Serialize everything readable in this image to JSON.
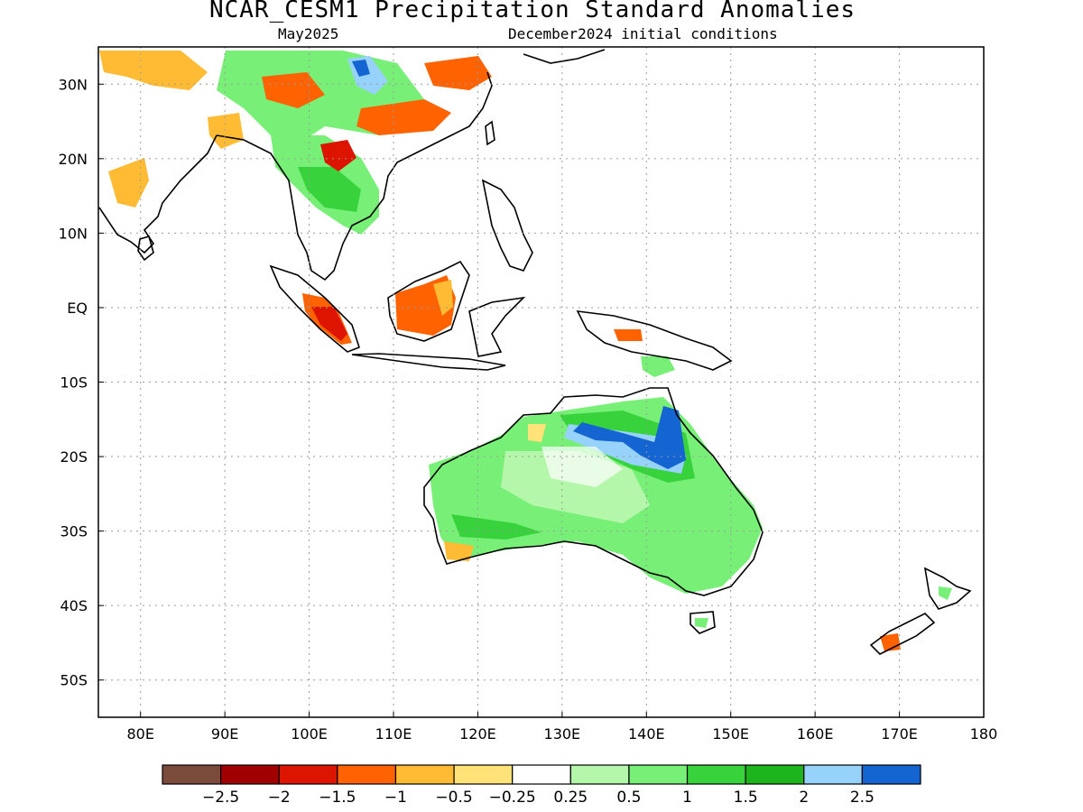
{
  "title": "NCAR_CESM1 Precipitation Standard Anomalies",
  "subtitle_left": "May2025",
  "subtitle_right": "December2024 initial conditions",
  "map": {
    "lon_range": [
      75,
      180
    ],
    "lat_range": [
      -55,
      35
    ],
    "lon_ticks": [
      {
        "v": 80,
        "label": "80E"
      },
      {
        "v": 90,
        "label": "90E"
      },
      {
        "v": 100,
        "label": "100E"
      },
      {
        "v": 110,
        "label": "110E"
      },
      {
        "v": 120,
        "label": "120E"
      },
      {
        "v": 130,
        "label": "130E"
      },
      {
        "v": 140,
        "label": "140E"
      },
      {
        "v": 150,
        "label": "150E"
      },
      {
        "v": 160,
        "label": "160E"
      },
      {
        "v": 170,
        "label": "170E"
      },
      {
        "v": 180,
        "label": "180"
      }
    ],
    "lat_ticks": [
      {
        "v": 30,
        "label": "30N"
      },
      {
        "v": 20,
        "label": "20N"
      },
      {
        "v": 10,
        "label": "10N"
      },
      {
        "v": 0,
        "label": "EQ"
      },
      {
        "v": -10,
        "label": "10S"
      },
      {
        "v": -20,
        "label": "20S"
      },
      {
        "v": -30,
        "label": "30S"
      },
      {
        "v": -40,
        "label": "40S"
      },
      {
        "v": -50,
        "label": "50S"
      }
    ]
  },
  "colorbar": {
    "colors": [
      "#7a4a3a",
      "#a00000",
      "#dd1500",
      "#ff6200",
      "#ffbb33",
      "#ffe278",
      "#ffffff",
      "#b4f7aa",
      "#78f078",
      "#37d23c",
      "#1eb41e",
      "#96d2fa",
      "#1464d2"
    ],
    "labels": [
      "-2.5",
      "-2",
      "-1.5",
      "-1",
      "-0.5",
      "-0.25",
      "0.25",
      "0.5",
      "1",
      "1.5",
      "2",
      "2.5"
    ]
  }
}
